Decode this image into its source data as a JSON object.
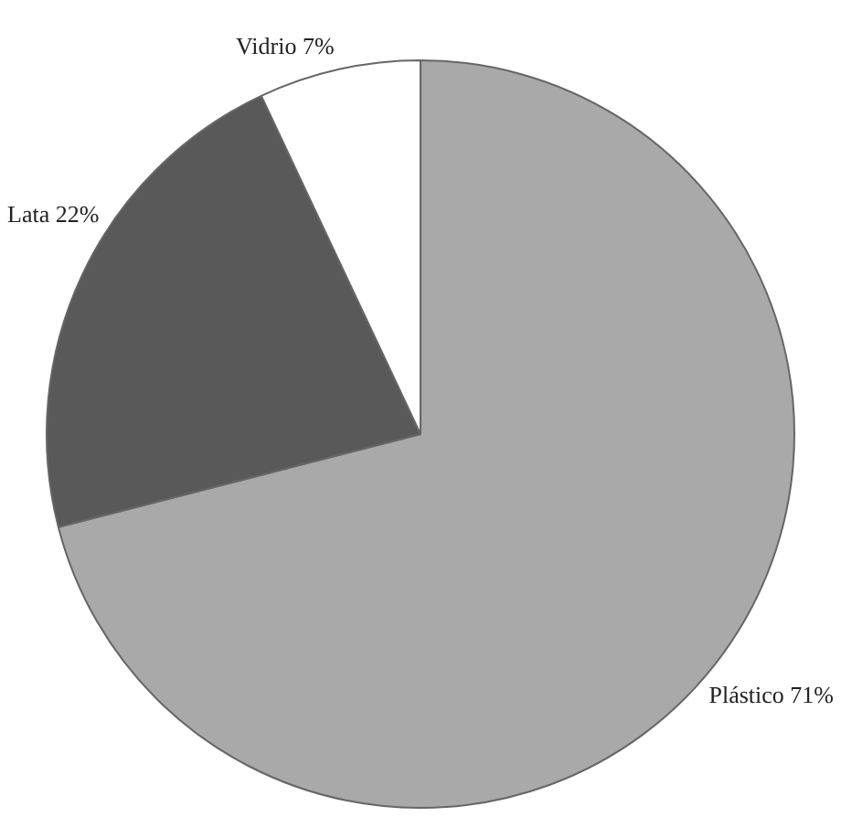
{
  "chart_data": {
    "type": "pie",
    "categories": [
      "Plástico",
      "Lata",
      "Vidrio"
    ],
    "values": [
      71,
      22,
      7
    ],
    "colors": [
      "#a9a9a9",
      "#595959",
      "#ffffff"
    ],
    "value_labels": [
      "71%",
      "22%",
      "7%"
    ],
    "legend": false
  }
}
